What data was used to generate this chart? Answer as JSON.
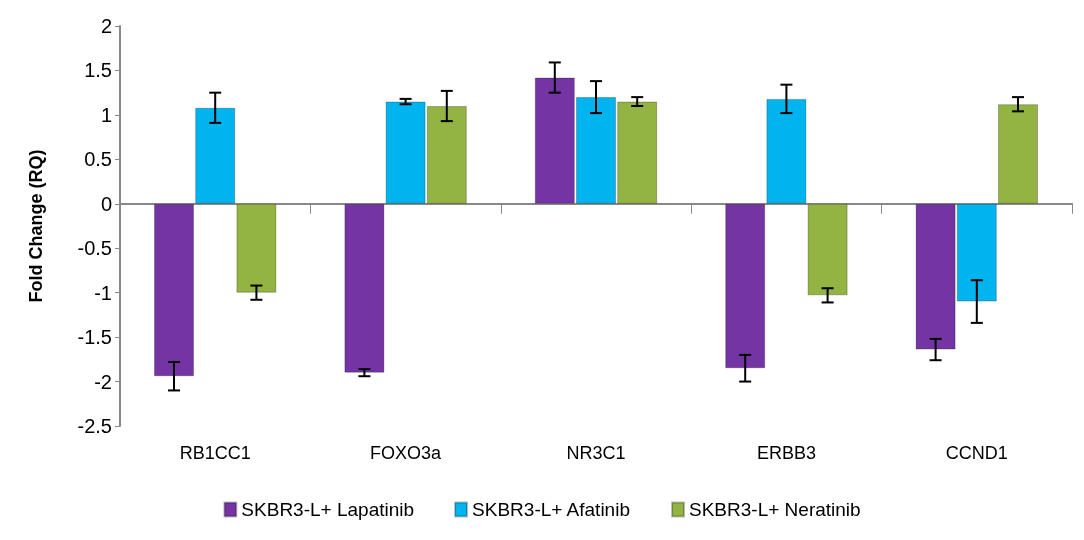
{
  "chart_data": {
    "type": "bar",
    "ylabel": "Fold Change (RQ)",
    "categories": [
      "RB1CC1",
      "FOXO3a",
      "NR3C1",
      "ERBB3",
      "CCND1"
    ],
    "series": [
      {
        "name": "SKBR3-L+ Lapatinib",
        "color": "#7434a4",
        "values": [
          -1.94,
          -1.9,
          1.42,
          -1.85,
          -1.64
        ],
        "errors": [
          0.16,
          0.04,
          0.17,
          0.15,
          0.12
        ]
      },
      {
        "name": "SKBR3-L+ Afatinib",
        "color": "#00b4f0",
        "values": [
          1.08,
          1.15,
          1.2,
          1.18,
          -1.1
        ],
        "errors": [
          0.17,
          0.03,
          0.18,
          0.16,
          0.24
        ]
      },
      {
        "name": "SKBR3-L+ Neratinib",
        "color": "#93b442",
        "values": [
          -1.0,
          1.1,
          1.15,
          -1.03,
          1.12
        ],
        "errors": [
          0.08,
          0.17,
          0.05,
          0.08,
          0.08
        ]
      }
    ],
    "ylim": [
      -2.5,
      2
    ],
    "yticks": [
      -2.5,
      -2,
      -1.5,
      -1,
      -0.5,
      0,
      0.5,
      1,
      1.5,
      2
    ],
    "legend": "bottom"
  }
}
